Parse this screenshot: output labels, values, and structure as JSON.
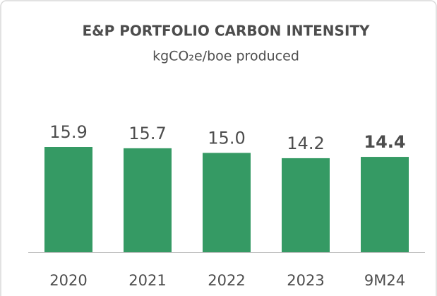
{
  "chart_data": {
    "type": "bar",
    "title": "E&P PORTFOLIO CARBON INTENSITY",
    "subtitle": "kgCO₂e/boe produced",
    "categories": [
      "2020",
      "2021",
      "2022",
      "2023",
      "9M24"
    ],
    "values": [
      15.9,
      15.7,
      15.0,
      14.2,
      14.4
    ],
    "value_labels": [
      "15.9",
      "15.7",
      "15.0",
      "14.2",
      "14.4"
    ],
    "color": "#359a64"
  }
}
